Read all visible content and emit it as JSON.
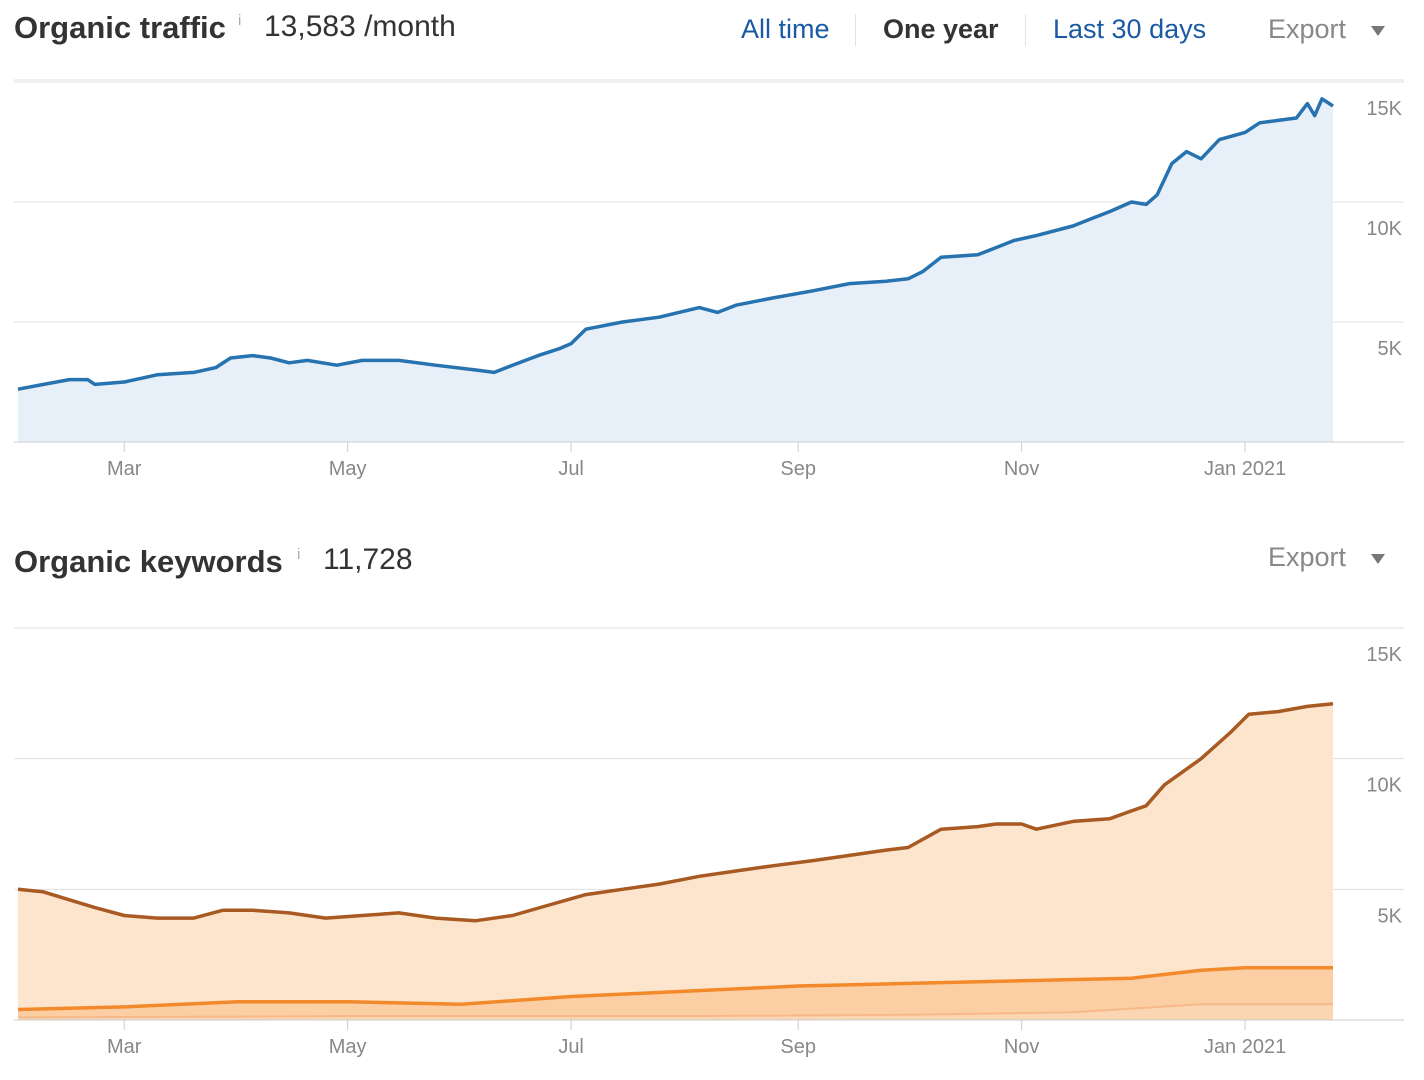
{
  "traffic": {
    "title": "Organic traffic",
    "info": "i",
    "value": "13,583 /month",
    "ranges": [
      "All time",
      "One year",
      "Last 30 days"
    ],
    "active_range": "One year",
    "export_label": "Export"
  },
  "keywords": {
    "title": "Organic keywords",
    "info": "i",
    "value": "11,728",
    "export_label": "Export"
  },
  "colors": {
    "traffic_line": "#2673b0",
    "traffic_fill": "#e7eff8",
    "kw_line1": "#a85a22",
    "kw_fill1": "#fde5cd",
    "kw_line2": "#f28a2b",
    "kw_fill2": "#fbc696",
    "kw_line3": "#f7b98a",
    "grid": "#e0e0e0",
    "axis_text": "#888888",
    "link": "#1a5aa5"
  },
  "chart_data": [
    {
      "type": "line",
      "name": "Organic traffic",
      "x_tick_labels": [
        "Mar",
        "May",
        "Jul",
        "Sep",
        "Nov",
        "Jan 2021"
      ],
      "y_tick_labels": [
        "5K",
        "10K",
        "15K"
      ],
      "ylim": [
        0,
        15000
      ],
      "grid": true,
      "x_start": "2020-02-01",
      "x_end": "2021-01-25",
      "series": [
        {
          "points": [
            [
              "2020-02-01",
              2200
            ],
            [
              "2020-02-08",
              2400
            ],
            [
              "2020-02-15",
              2600
            ],
            [
              "2020-02-20",
              2600
            ],
            [
              "2020-02-22",
              2400
            ],
            [
              "2020-03-01",
              2500
            ],
            [
              "2020-03-10",
              2800
            ],
            [
              "2020-03-20",
              2900
            ],
            [
              "2020-03-26",
              3100
            ],
            [
              "2020-03-30",
              3500
            ],
            [
              "2020-04-05",
              3600
            ],
            [
              "2020-04-10",
              3500
            ],
            [
              "2020-04-15",
              3300
            ],
            [
              "2020-04-20",
              3400
            ],
            [
              "2020-04-28",
              3200
            ],
            [
              "2020-05-05",
              3400
            ],
            [
              "2020-05-15",
              3400
            ],
            [
              "2020-05-25",
              3200
            ],
            [
              "2020-06-05",
              3000
            ],
            [
              "2020-06-10",
              2900
            ],
            [
              "2020-06-15",
              3200
            ],
            [
              "2020-06-22",
              3600
            ],
            [
              "2020-06-28",
              3900
            ],
            [
              "2020-07-01",
              4100
            ],
            [
              "2020-07-05",
              4700
            ],
            [
              "2020-07-15",
              5000
            ],
            [
              "2020-07-25",
              5200
            ],
            [
              "2020-08-05",
              5600
            ],
            [
              "2020-08-10",
              5400
            ],
            [
              "2020-08-15",
              5700
            ],
            [
              "2020-08-25",
              6000
            ],
            [
              "2020-09-05",
              6300
            ],
            [
              "2020-09-15",
              6600
            ],
            [
              "2020-09-25",
              6700
            ],
            [
              "2020-10-01",
              6800
            ],
            [
              "2020-10-05",
              7100
            ],
            [
              "2020-10-10",
              7700
            ],
            [
              "2020-10-20",
              7800
            ],
            [
              "2020-10-25",
              8100
            ],
            [
              "2020-10-30",
              8400
            ],
            [
              "2020-11-05",
              8600
            ],
            [
              "2020-11-15",
              9000
            ],
            [
              "2020-11-20",
              9300
            ],
            [
              "2020-11-25",
              9600
            ],
            [
              "2020-12-01",
              10000
            ],
            [
              "2020-12-05",
              9900
            ],
            [
              "2020-12-08",
              10300
            ],
            [
              "2020-12-12",
              11600
            ],
            [
              "2020-12-16",
              12100
            ],
            [
              "2020-12-20",
              11800
            ],
            [
              "2020-12-25",
              12600
            ],
            [
              "2021-01-01",
              12900
            ],
            [
              "2021-01-05",
              13300
            ],
            [
              "2021-01-10",
              13400
            ],
            [
              "2021-01-15",
              13500
            ],
            [
              "2021-01-18",
              14100
            ],
            [
              "2021-01-20",
              13600
            ],
            [
              "2021-01-22",
              14300
            ],
            [
              "2021-01-25",
              14000
            ]
          ]
        }
      ]
    },
    {
      "type": "area",
      "name": "Organic keywords",
      "x_tick_labels": [
        "Mar",
        "May",
        "Jul",
        "Sep",
        "Nov",
        "Jan 2021"
      ],
      "y_tick_labels": [
        "5K",
        "10K",
        "15K"
      ],
      "ylim": [
        0,
        15000
      ],
      "grid": true,
      "x_start": "2020-02-01",
      "x_end": "2021-01-25",
      "series": [
        {
          "points": [
            [
              "2020-02-01",
              5000
            ],
            [
              "2020-02-08",
              4900
            ],
            [
              "2020-02-15",
              4600
            ],
            [
              "2020-02-22",
              4300
            ],
            [
              "2020-03-01",
              4000
            ],
            [
              "2020-03-10",
              3900
            ],
            [
              "2020-03-20",
              3900
            ],
            [
              "2020-03-28",
              4200
            ],
            [
              "2020-04-05",
              4200
            ],
            [
              "2020-04-15",
              4100
            ],
            [
              "2020-04-25",
              3900
            ],
            [
              "2020-05-05",
              4000
            ],
            [
              "2020-05-15",
              4100
            ],
            [
              "2020-05-25",
              3900
            ],
            [
              "2020-06-05",
              3800
            ],
            [
              "2020-06-15",
              4000
            ],
            [
              "2020-06-25",
              4400
            ],
            [
              "2020-07-05",
              4800
            ],
            [
              "2020-07-15",
              5000
            ],
            [
              "2020-07-25",
              5200
            ],
            [
              "2020-08-05",
              5500
            ],
            [
              "2020-08-15",
              5700
            ],
            [
              "2020-08-25",
              5900
            ],
            [
              "2020-09-05",
              6100
            ],
            [
              "2020-09-15",
              6300
            ],
            [
              "2020-09-25",
              6500
            ],
            [
              "2020-10-01",
              6600
            ],
            [
              "2020-10-10",
              7300
            ],
            [
              "2020-10-20",
              7400
            ],
            [
              "2020-10-25",
              7500
            ],
            [
              "2020-11-01",
              7500
            ],
            [
              "2020-11-05",
              7300
            ],
            [
              "2020-11-15",
              7600
            ],
            [
              "2020-11-25",
              7700
            ],
            [
              "2020-12-01",
              8000
            ],
            [
              "2020-12-05",
              8200
            ],
            [
              "2020-12-10",
              9000
            ],
            [
              "2020-12-20",
              10000
            ],
            [
              "2020-12-28",
              11000
            ],
            [
              "2021-01-02",
              11700
            ],
            [
              "2021-01-10",
              11800
            ],
            [
              "2021-01-18",
              12000
            ],
            [
              "2021-01-25",
              12100
            ]
          ]
        },
        {
          "points": [
            [
              "2020-02-01",
              400
            ],
            [
              "2020-03-01",
              500
            ],
            [
              "2020-04-01",
              700
            ],
            [
              "2020-05-01",
              700
            ],
            [
              "2020-06-01",
              600
            ],
            [
              "2020-07-01",
              900
            ],
            [
              "2020-08-01",
              1100
            ],
            [
              "2020-09-01",
              1300
            ],
            [
              "2020-10-01",
              1400
            ],
            [
              "2020-11-01",
              1500
            ],
            [
              "2020-12-01",
              1600
            ],
            [
              "2020-12-20",
              1900
            ],
            [
              "2021-01-01",
              2000
            ],
            [
              "2021-01-25",
              2000
            ]
          ]
        },
        {
          "points": [
            [
              "2020-02-01",
              100
            ],
            [
              "2020-05-01",
              150
            ],
            [
              "2020-08-01",
              150
            ],
            [
              "2020-10-01",
              200
            ],
            [
              "2020-11-15",
              300
            ],
            [
              "2020-12-20",
              600
            ],
            [
              "2021-01-25",
              600
            ]
          ]
        }
      ]
    }
  ]
}
